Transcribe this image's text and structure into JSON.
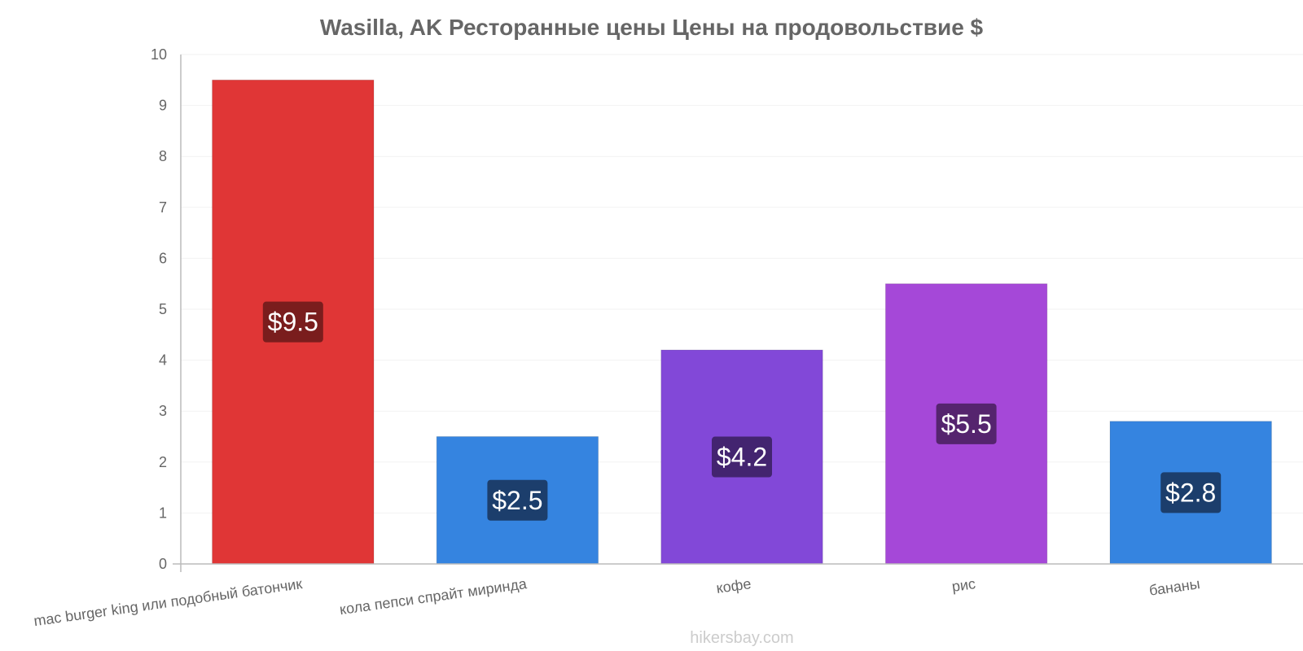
{
  "chart_data": {
    "type": "bar",
    "title": "Wasilla, AK Ресторанные цены Цены на продовольствие $",
    "categories": [
      "mac burger king или подобный батончик",
      "кола пепси спрайт миринда",
      "кофе",
      "рис",
      "бананы"
    ],
    "values": [
      9.5,
      2.5,
      4.2,
      5.5,
      2.8
    ],
    "value_labels": [
      "$9.5",
      "$2.5",
      "$4.2",
      "$5.5",
      "$2.8"
    ],
    "ylim": [
      0,
      10
    ],
    "yticks": [
      "0",
      "1",
      "2",
      "3",
      "4",
      "5",
      "6",
      "7",
      "8",
      "9",
      "10"
    ],
    "grid": true,
    "colors": {
      "bars": [
        "#e03636",
        "#3584e0",
        "#8248d8",
        "#a548d8",
        "#3584e0"
      ],
      "labels_bg": [
        "#7a1d1d",
        "#1c3e6c",
        "#432470",
        "#55246e",
        "#1c3e6c"
      ]
    }
  },
  "watermark": "hikersbay.com"
}
